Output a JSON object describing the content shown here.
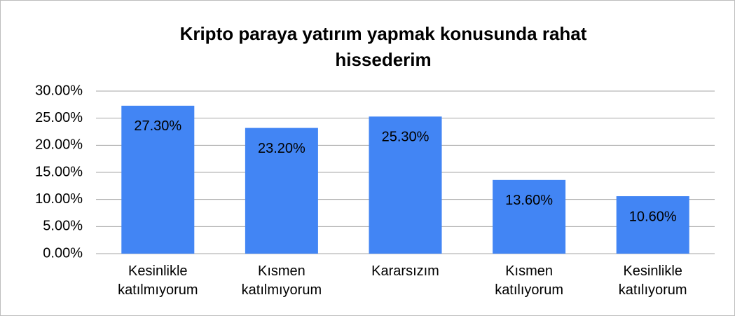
{
  "chart_data": {
    "type": "bar",
    "title": "Kripto paraya yatırım yapmak konusunda rahat hissederim",
    "categories": [
      "Kesinlikle katılmıyorum",
      "Kısmen katılmıyorum",
      "Kararsızım",
      "Kısmen katılıyorum",
      "Kesinlikle katılıyorum"
    ],
    "values": [
      27.3,
      23.2,
      25.3,
      13.6,
      10.6
    ],
    "value_labels": [
      "27.30%",
      "23.20%",
      "25.30%",
      "13.60%",
      "10.60%"
    ],
    "color": "#4285f4",
    "ylim": [
      0,
      30
    ],
    "yticks": [
      {
        "value": 0,
        "label": "0.00%"
      },
      {
        "value": 5,
        "label": "5.00%"
      },
      {
        "value": 10,
        "label": "10.00%"
      },
      {
        "value": 15,
        "label": "15.00%"
      },
      {
        "value": 20,
        "label": "20.00%"
      },
      {
        "value": 25,
        "label": "25.00%"
      },
      {
        "value": 30,
        "label": "30.00%"
      }
    ],
    "grid": true
  }
}
